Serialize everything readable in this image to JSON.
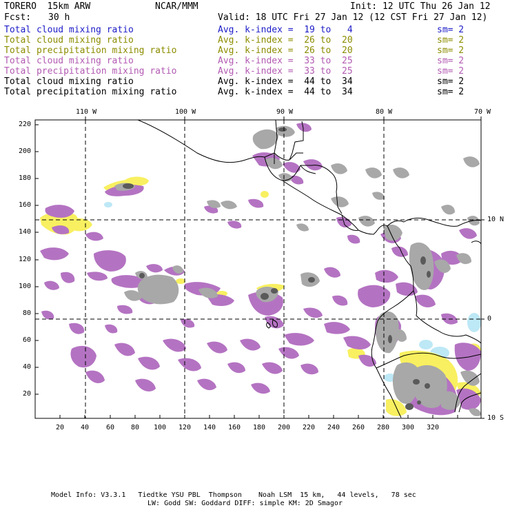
{
  "header": {
    "model": "TORERO  15km ARW",
    "org": "NCAR/MMM",
    "init": "Init: 12 UTC Thu 26 Jan 12",
    "fcst_label": "Fcst:",
    "fcst_value": "30 h",
    "valid": "Valid: 18 UTC Fri 27 Jan 12 (12 CST Fri 27 Jan 12)"
  },
  "legend": [
    {
      "field": "Total cloud mixing ratio",
      "kindex": "Avg. k-index =  19 to   4",
      "sm": "sm= 2",
      "color": "#1c1cc8"
    },
    {
      "field": "Total cloud mixing ratio",
      "kindex": "Avg. k-index =  26 to  20",
      "sm": "sm= 2",
      "color": "#8c8c00"
    },
    {
      "field": "Total precipitation mixing ratio",
      "kindex": "Avg. k-index =  26 to  20",
      "sm": "sm= 2",
      "color": "#8c8c00"
    },
    {
      "field": "Total cloud mixing ratio",
      "kindex": "Avg. k-index =  33 to  25",
      "sm": "sm= 2",
      "color": "#b25ab2"
    },
    {
      "field": "Total precipitation mixing ratio",
      "kindex": "Avg. k-index =  33 to  25",
      "sm": "sm= 2",
      "color": "#b25ab2"
    },
    {
      "field": "Total cloud mixing ratio",
      "kindex": "Avg. k-index =  44 to  34",
      "sm": "sm= 2",
      "color": "#000000"
    },
    {
      "field": "Total precipitation mixing ratio",
      "kindex": "Avg. k-index =  44 to  34",
      "sm": "sm= 2",
      "color": "#000000"
    }
  ],
  "map": {
    "lon_labels": [
      "110 W",
      "100 W",
      "90 W",
      "80 W",
      "70 W"
    ],
    "lat_labels": [
      "10 N",
      "0",
      "10 S"
    ],
    "y_ticks": [
      "220",
      "200",
      "180",
      "160",
      "140",
      "120",
      "100",
      "80",
      "60",
      "40",
      "20"
    ],
    "x_ticks": [
      "20",
      "40",
      "60",
      "80",
      "100",
      "120",
      "140",
      "160",
      "180",
      "200",
      "220",
      "240",
      "260",
      "280",
      "300",
      "320"
    ],
    "colors": {
      "cloud_light": "#bde8f6",
      "cloud_yellow": "#f8f060",
      "precip_purple": "#b473c2",
      "cloud_gray": "#a8a8a8",
      "dark_gray": "#5a5a5a"
    }
  },
  "footer": {
    "line1": "Model Info: V3.3.1   Tiedtke YSU PBL  Thompson    Noah LSM  15 km,   44 levels,   78 sec",
    "line2": "LW: Godd SW: Goddard DIFF: simple KM: 2D Smagor"
  }
}
